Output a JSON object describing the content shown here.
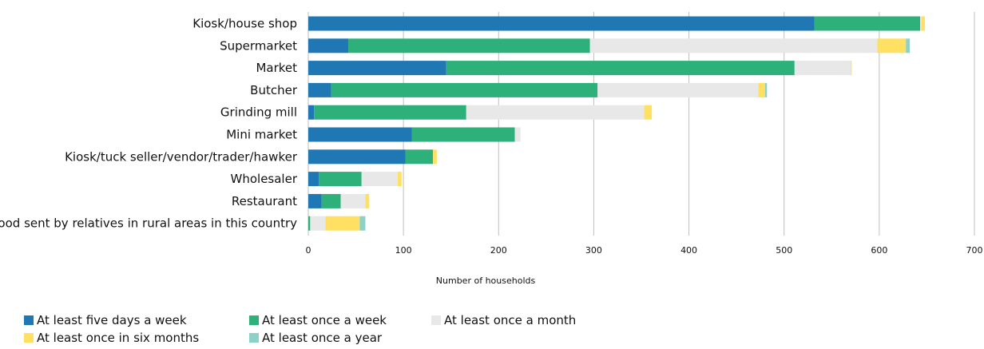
{
  "chart_data": {
    "type": "bar",
    "orientation": "horizontal",
    "stacked": true,
    "categories": [
      "Kiosk/house shop",
      "Supermarket",
      "Market",
      "Butcher",
      "Grinding mill",
      "Mini market",
      "Kiosk/tuck seller/vendor/trader/hawker",
      "Wholesaler",
      "Restaurant",
      "Food sent by relatives in rural areas in this country"
    ],
    "series": [
      {
        "name": "At least five days a week",
        "color": "#1f77b4",
        "values": [
          532,
          42,
          145,
          24,
          6,
          109,
          102,
          11,
          14,
          0
        ]
      },
      {
        "name": "At least once a week",
        "color": "#2eb07a",
        "values": [
          111,
          254,
          366,
          280,
          160,
          108,
          29,
          45,
          20,
          2
        ]
      },
      {
        "name": "At least once a month",
        "color": "#e8e8e8",
        "values": [
          1,
          302,
          59,
          169,
          187,
          6,
          0,
          38,
          26,
          16
        ]
      },
      {
        "name": "At least once in six months",
        "color": "#ffe063",
        "values": [
          4,
          30,
          1,
          7,
          8,
          0,
          4,
          4,
          4,
          36
        ]
      },
      {
        "name": "At least once a year",
        "color": "#8ed1c6",
        "values": [
          0,
          4,
          0,
          2,
          0,
          0,
          0,
          0,
          0,
          6
        ]
      }
    ],
    "xlabel": "Number of households",
    "ylabel": "",
    "xlim": [
      0,
      700
    ],
    "xticks": [
      "0",
      "100",
      "200",
      "300",
      "400",
      "500",
      "600",
      "700"
    ],
    "grid": "vertical",
    "legend_position": "bottom-left"
  }
}
